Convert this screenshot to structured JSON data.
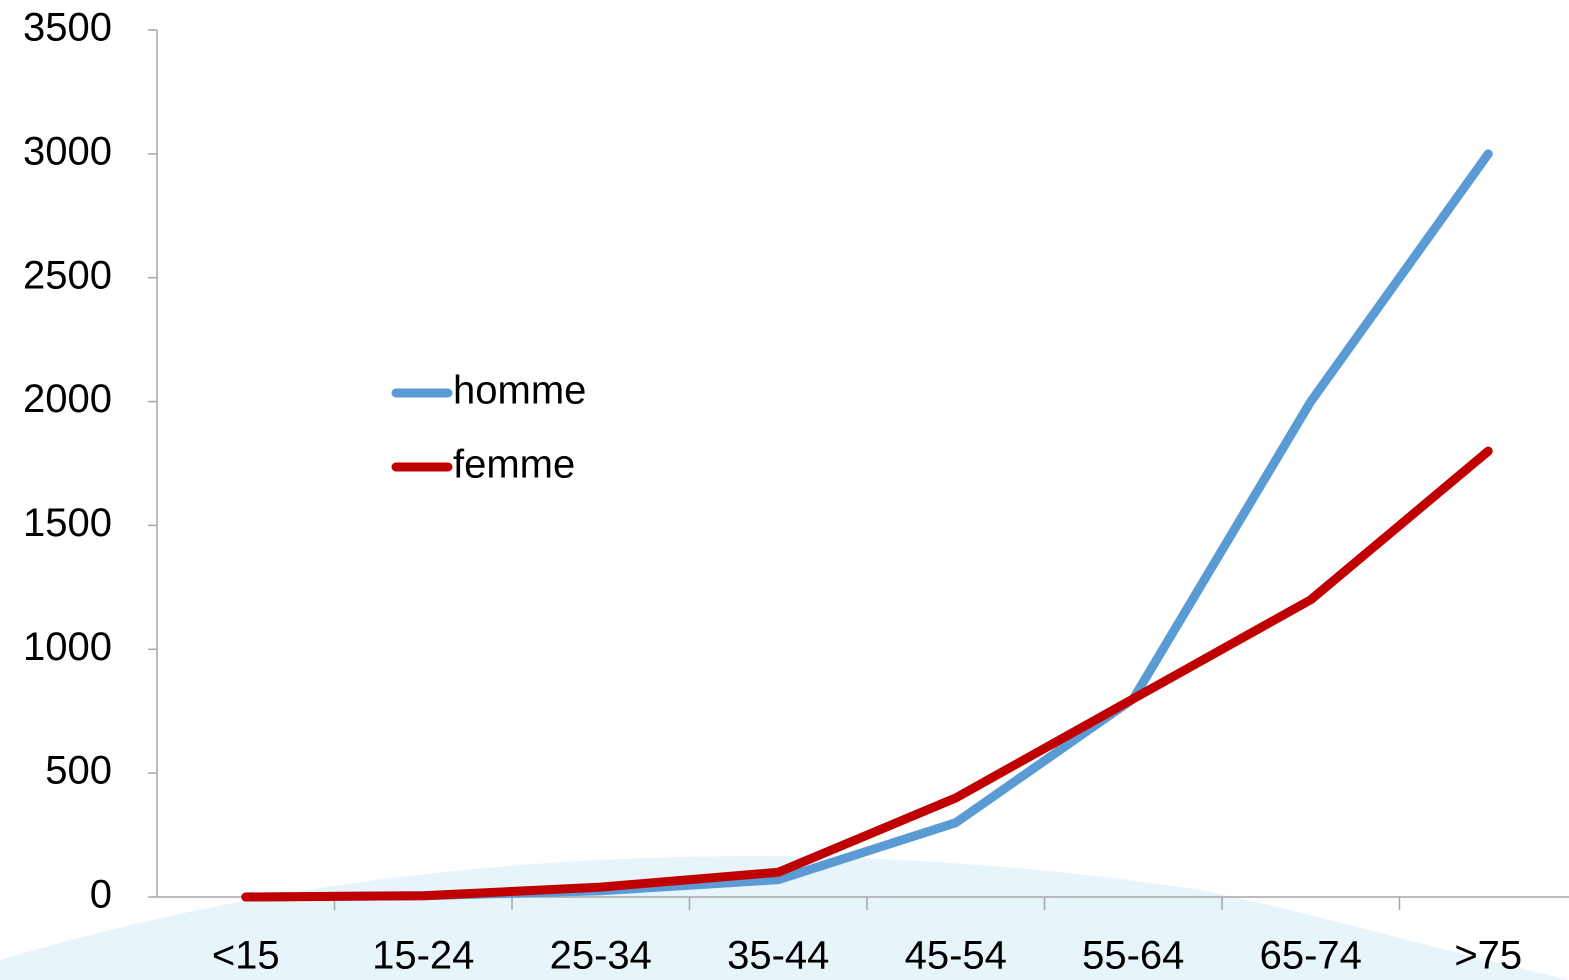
{
  "chart_data": {
    "type": "line",
    "categories": [
      "<15",
      "15-24",
      "25-34",
      "35-44",
      "45-54",
      "55-64",
      "65-74",
      ">75"
    ],
    "series": [
      {
        "name": "homme",
        "color": "#5b9bd5",
        "values": [
          0,
          5,
          25,
          70,
          300,
          800,
          2000,
          3000
        ]
      },
      {
        "name": "femme",
        "color": "#c00000",
        "values": [
          0,
          5,
          40,
          100,
          400,
          800,
          1200,
          1800
        ]
      }
    ],
    "ylim": [
      0,
      3500
    ],
    "yticks": [
      0,
      500,
      1000,
      1500,
      2000,
      2500,
      3000,
      3500
    ],
    "grid": false,
    "legend": "center-left"
  }
}
